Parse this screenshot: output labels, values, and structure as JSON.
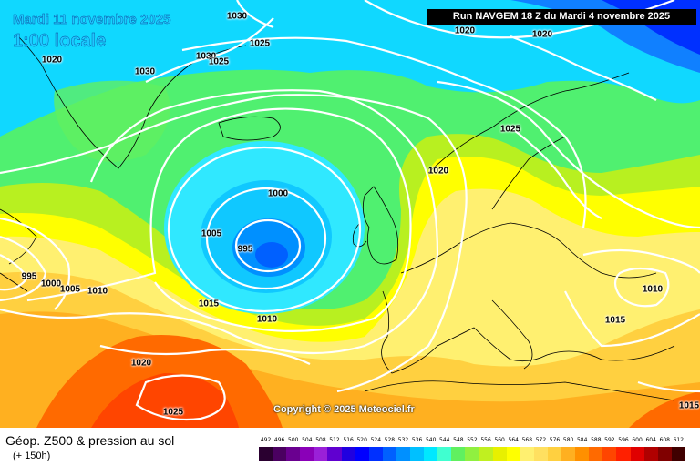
{
  "header": {
    "date_line": "Mardi 11 novembre 2025",
    "time_line": "1:00 locale",
    "run_info": "Run NAVGEM 18 Z du Mardi 4 novembre 2025"
  },
  "copyright": "Copyright © 2025 Meteociel.fr",
  "footer": {
    "title": "Géop. Z500 & pression au sol",
    "subtitle": "(+ 150h)"
  },
  "isobar_labels": [
    {
      "id": "a",
      "text": "1030"
    },
    {
      "id": "b",
      "text": "1025"
    },
    {
      "id": "c",
      "text": "1020"
    },
    {
      "id": "d",
      "text": "1030"
    },
    {
      "id": "e",
      "text": "1030"
    },
    {
      "id": "f",
      "text": "1025"
    },
    {
      "id": "g",
      "text": "1020"
    },
    {
      "id": "h",
      "text": "1020"
    },
    {
      "id": "i",
      "text": "1025"
    },
    {
      "id": "j",
      "text": "1020"
    },
    {
      "id": "k",
      "text": "1000"
    },
    {
      "id": "l",
      "text": "1005"
    },
    {
      "id": "m",
      "text": "995"
    },
    {
      "id": "n",
      "text": "995"
    },
    {
      "id": "o",
      "text": "1000"
    },
    {
      "id": "p",
      "text": "1005"
    },
    {
      "id": "q",
      "text": "1010"
    },
    {
      "id": "r",
      "text": "1015"
    },
    {
      "id": "s",
      "text": "1010"
    },
    {
      "id": "t",
      "text": "1020"
    },
    {
      "id": "u",
      "text": "1025"
    },
    {
      "id": "v",
      "text": "1010"
    },
    {
      "id": "w",
      "text": "1015"
    },
    {
      "id": "x",
      "text": "1015"
    }
  ],
  "legend": {
    "values": [
      "492",
      "496",
      "500",
      "504",
      "508",
      "512",
      "516",
      "520",
      "524",
      "528",
      "532",
      "536",
      "540",
      "544",
      "548",
      "552",
      "556",
      "560",
      "564",
      "568",
      "572",
      "576",
      "580",
      "584",
      "588",
      "592",
      "596",
      "600",
      "604",
      "608",
      "612"
    ],
    "colors": [
      "#2a0030",
      "#4a0060",
      "#6a0090",
      "#8a00b8",
      "#9a20d8",
      "#6000d0",
      "#2000e0",
      "#0000ff",
      "#0030ff",
      "#0060ff",
      "#0090ff",
      "#00c0ff",
      "#00e8ff",
      "#40ffd0",
      "#60f060",
      "#90f040",
      "#c0f020",
      "#e8f000",
      "#ffff00",
      "#fff070",
      "#ffe060",
      "#ffd040",
      "#ffb020",
      "#ff9000",
      "#ff6a00",
      "#ff4500",
      "#ff2000",
      "#e00000",
      "#b00000",
      "#800000",
      "#400000"
    ]
  }
}
